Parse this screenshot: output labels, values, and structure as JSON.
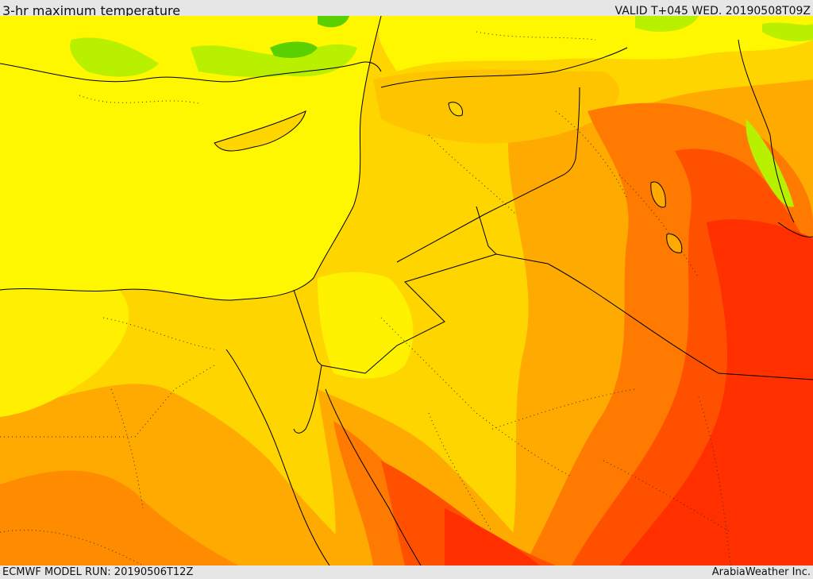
{
  "header": {
    "title": "3-hr maximum temperature",
    "valid_time": "VALID T+045 WED. 20190508T09Z"
  },
  "footer": {
    "model_run": "ECMWF MODEL RUN: 20190506T12Z",
    "provider": "ArabiaWeather Inc."
  },
  "map": {
    "field": "3-hr maximum temperature",
    "colors": {
      "green": "#7ee000",
      "light_green": "#b8f000",
      "yellow": "#fff700",
      "light_orange": "#ffd500",
      "orange": "#ffaa00",
      "dark_orange": "#ff7a00",
      "red_orange": "#ff5000",
      "red": "#ff2f00",
      "land_border": "#000000"
    }
  }
}
